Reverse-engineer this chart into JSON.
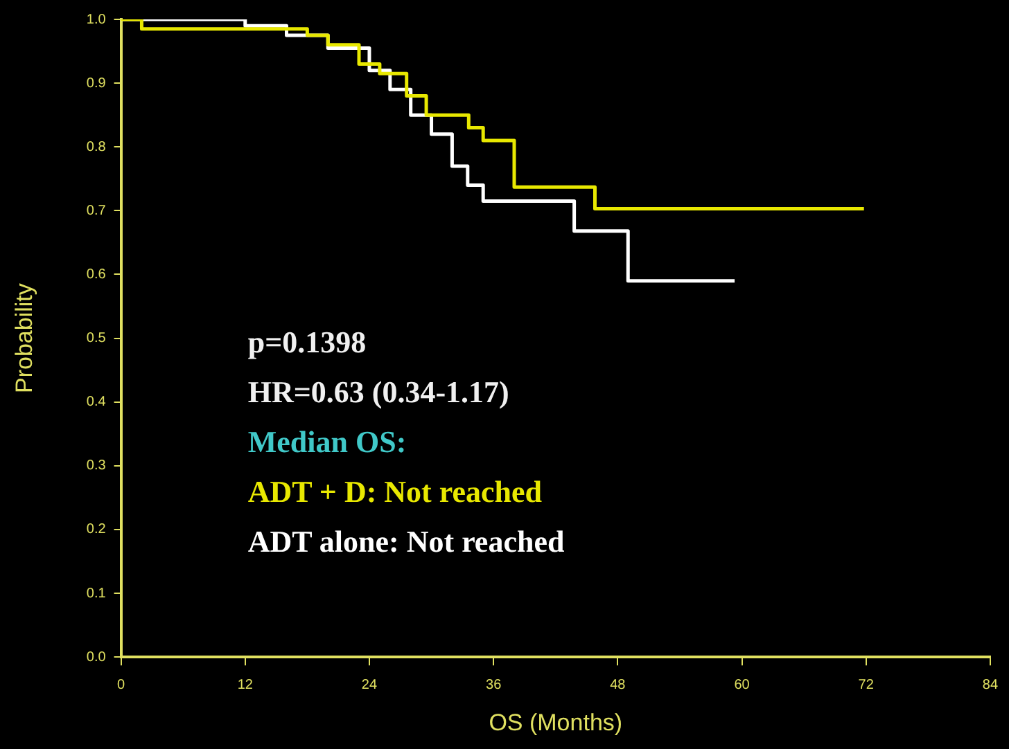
{
  "chart_data": {
    "type": "step",
    "xlabel": "OS (Months)",
    "ylabel": "Probability",
    "xlim": [
      0,
      84
    ],
    "xticks": [
      0,
      12,
      24,
      36,
      48,
      60,
      72,
      84
    ],
    "ylim": [
      0,
      1
    ],
    "yticks": [
      {
        "value": 0,
        "label": "0.0"
      },
      0.1,
      0.2,
      0.3,
      0.4,
      0.5,
      0.6,
      0.7,
      0.8,
      0.9,
      {
        "value": 1,
        "label": "1.0"
      }
    ],
    "grid": false,
    "legend": false,
    "marker": "none",
    "line_style": "solid",
    "series": [
      {
        "color": "#e8e800",
        "x": [
          0,
          2,
          18,
          20,
          23,
          25,
          27.6,
          29.5,
          33.6,
          35,
          38,
          45.8,
          71.8
        ],
        "values": [
          1.0,
          0.985,
          0.975,
          0.96,
          0.93,
          0.915,
          0.88,
          0.85,
          0.83,
          0.81,
          0.737,
          0.703,
          0.703
        ]
      },
      {
        "color": "#ffffff",
        "x": [
          0,
          12,
          16,
          20,
          24,
          26,
          28,
          30,
          32,
          33.5,
          35,
          43.8,
          49,
          59.3
        ],
        "values": [
          1.0,
          0.99,
          0.975,
          0.955,
          0.92,
          0.89,
          0.85,
          0.82,
          0.77,
          0.74,
          0.715,
          0.668,
          0.59,
          0.59
        ]
      }
    ],
    "annotations": [
      "p=0.1398",
      "HR=0.63 (0.34-1.17)",
      "Median OS:",
      "ADT + D: Not reached",
      "ADT alone: Not reached"
    ]
  }
}
